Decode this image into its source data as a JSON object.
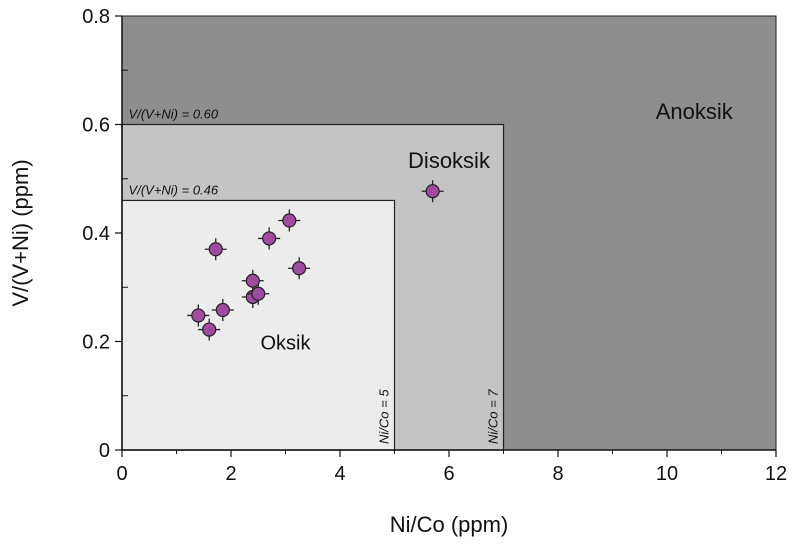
{
  "chart_data": {
    "type": "scatter",
    "xlabel": "Ni/Co (ppm)",
    "ylabel": "V/(V+Ni) (ppm)",
    "xlim": [
      0,
      12
    ],
    "ylim": [
      0,
      0.8
    ],
    "x_ticks": [
      "0",
      "2",
      "4",
      "6",
      "8",
      "10",
      "12"
    ],
    "y_ticks": [
      "0",
      "0.2",
      "0.4",
      "0.6",
      "0.8"
    ],
    "grid": false,
    "regions": [
      {
        "name": "Anoksik",
        "x": [
          0,
          12
        ],
        "y": [
          0,
          0.8
        ],
        "color": "#8e8e8e"
      },
      {
        "name": "Disoksik",
        "x": [
          0,
          7
        ],
        "y": [
          0,
          0.6
        ],
        "color": "#c4c4c4"
      },
      {
        "name": "Oksik",
        "x": [
          0,
          5
        ],
        "y": [
          0,
          0.46
        ],
        "color": "#ececec"
      }
    ],
    "threshold_labels": {
      "v_060": "V/(V+Ni) = 0.60",
      "v_046": "V/(V+Ni) = 0.46",
      "nico_5": "Ni/Co = 5",
      "nico_7": "Ni/Co = 7"
    },
    "marker_color": "#a04aa0",
    "points": [
      {
        "x": 1.4,
        "y": 0.248
      },
      {
        "x": 1.6,
        "y": 0.222
      },
      {
        "x": 1.85,
        "y": 0.258
      },
      {
        "x": 1.72,
        "y": 0.37
      },
      {
        "x": 2.4,
        "y": 0.282
      },
      {
        "x": 2.5,
        "y": 0.288
      },
      {
        "x": 2.4,
        "y": 0.312
      },
      {
        "x": 2.7,
        "y": 0.39
      },
      {
        "x": 3.07,
        "y": 0.423
      },
      {
        "x": 3.25,
        "y": 0.335
      },
      {
        "x": 5.7,
        "y": 0.477
      }
    ]
  }
}
